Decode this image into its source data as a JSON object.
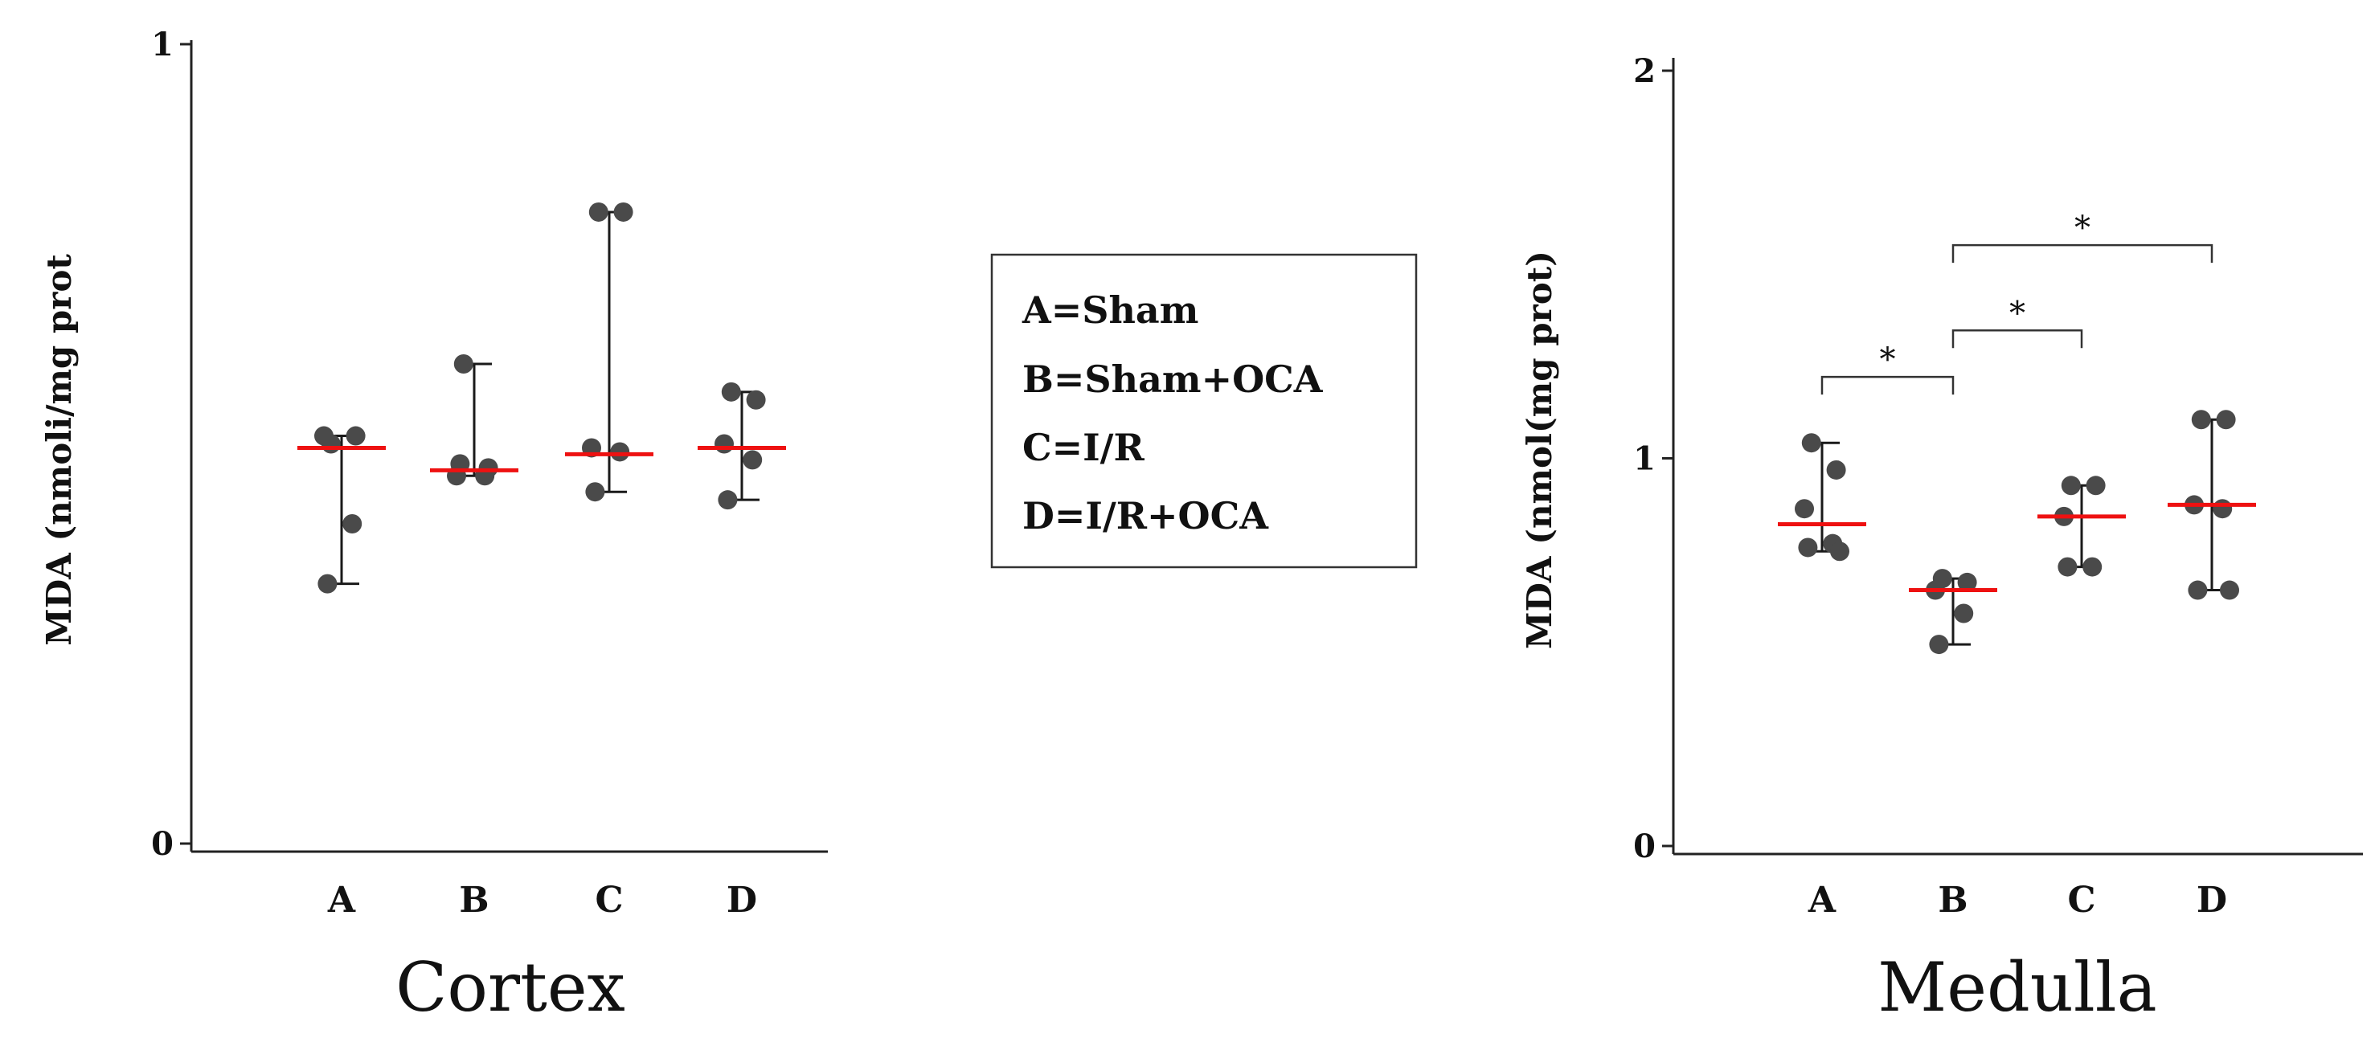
{
  "legend": {
    "entries": [
      "A=Sham",
      "B=Sham+OCA",
      "C=I/R",
      "D=I/R+OCA"
    ]
  },
  "chart_data": [
    {
      "type": "scatter",
      "panel": "left",
      "title": "Cortex",
      "ylabel": "MDA  (nmoli/mg prot",
      "xlabel": "",
      "categories": [
        "A",
        "B",
        "C",
        "D"
      ],
      "ylim": [
        0,
        1
      ],
      "yticks": [
        0,
        1
      ],
      "grid": false,
      "groups": [
        {
          "category": "A",
          "points": [
            0.5,
            0.51,
            0.51,
            0.4,
            0.325
          ],
          "median": 0.495,
          "range": [
            0.325,
            0.51
          ]
        },
        {
          "category": "B",
          "points": [
            0.6,
            0.47,
            0.46,
            0.46,
            0.475
          ],
          "median": 0.467,
          "range": [
            0.46,
            0.6
          ]
        },
        {
          "category": "C",
          "points": [
            0.79,
            0.79,
            0.495,
            0.49,
            0.44
          ],
          "median": 0.487,
          "range": [
            0.44,
            0.79
          ]
        },
        {
          "category": "D",
          "points": [
            0.565,
            0.555,
            0.5,
            0.48,
            0.43
          ],
          "median": 0.495,
          "range": [
            0.43,
            0.565
          ]
        }
      ],
      "significance": []
    },
    {
      "type": "scatter",
      "panel": "right",
      "title": "Medulla",
      "ylabel": "MDA (nmol(mg prot)",
      "xlabel": "",
      "categories": [
        "A",
        "B",
        "C",
        "D"
      ],
      "ylim": [
        0,
        2
      ],
      "yticks": [
        0,
        1,
        2
      ],
      "grid": false,
      "groups": [
        {
          "category": "A",
          "points": [
            1.04,
            0.97,
            0.87,
            0.78,
            0.77,
            0.76
          ],
          "median": 0.83,
          "range": [
            0.76,
            1.04
          ]
        },
        {
          "category": "B",
          "points": [
            0.69,
            0.68,
            0.66,
            0.6,
            0.52
          ],
          "median": 0.66,
          "range": [
            0.52,
            0.69
          ]
        },
        {
          "category": "C",
          "points": [
            0.93,
            0.93,
            0.85,
            0.72,
            0.72
          ],
          "median": 0.85,
          "range": [
            0.72,
            0.93
          ]
        },
        {
          "category": "D",
          "points": [
            1.1,
            1.1,
            0.88,
            0.87,
            0.66,
            0.66
          ],
          "median": 0.88,
          "range": [
            0.66,
            1.1
          ]
        }
      ],
      "significance": [
        {
          "from": "A",
          "to": "B",
          "y": 1.21,
          "label": "*"
        },
        {
          "from": "B",
          "to": "C",
          "y": 1.33,
          "label": "*"
        },
        {
          "from": "B",
          "to": "D",
          "y": 1.55,
          "label": "*"
        }
      ]
    }
  ]
}
